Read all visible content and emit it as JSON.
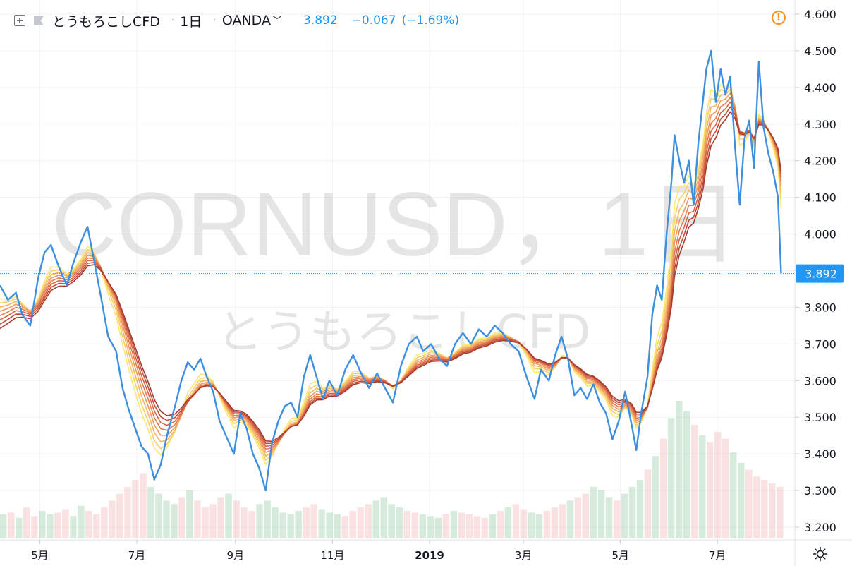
{
  "header": {
    "symbol": "とうもろこしCFD",
    "interval": "1日",
    "separator": "·",
    "exchange": "OANDA",
    "last": "3.892",
    "change": "−0.067",
    "change_pct": "(−1.69%)"
  },
  "watermark": {
    "line1": "CORNUSD，1日",
    "line2": "とうもろこしCFD"
  },
  "price_badge": "3.892",
  "colors": {
    "price_line": "#3d8fe0",
    "badge": "#2196f3",
    "ribbon": [
      "#fbe870",
      "#f8d06a",
      "#f4b463",
      "#ee985a",
      "#e47c50",
      "#d66445",
      "#c14e38",
      "#a93c2e"
    ],
    "volume": "rgba(120,190,140,0.30)",
    "volume_down": "rgba(235,140,140,0.25)",
    "alert": "#f7931a"
  },
  "icons": [
    "add-symbol-icon",
    "flag-icon",
    "chevron-down-icon",
    "alert-icon",
    "settings-gear-icon"
  ],
  "chart_data": {
    "type": "line",
    "title": "とうもろこしCFD · 1日 · OANDA",
    "ylim": [
      3.18,
      4.64
    ],
    "y_ticks": [
      "4.600",
      "4.500",
      "4.400",
      "4.300",
      "4.200",
      "4.100",
      "4.000",
      "3.900",
      "3.800",
      "3.700",
      "3.600",
      "3.500",
      "3.400",
      "3.300",
      "3.200"
    ],
    "x_ticks": [
      "5月",
      "7月",
      "9月",
      "11月",
      "2019",
      "3月",
      "5月",
      "7月"
    ],
    "x_tick_dates": [
      "2018-05-01",
      "2018-07-01",
      "2018-09-01",
      "2018-11-01",
      "2019-01-01",
      "2019-03-01",
      "2019-05-01",
      "2019-07-01"
    ],
    "x_range": [
      "2018-04-06",
      "2019-08-12"
    ],
    "series": [
      {
        "type": "line",
        "points": [
          [
            "2018-04-06",
            3.86
          ],
          [
            "2018-04-11",
            3.82
          ],
          [
            "2018-04-16",
            3.84
          ],
          [
            "2018-04-20",
            3.78
          ],
          [
            "2018-04-25",
            3.75
          ],
          [
            "2018-04-30",
            3.88
          ],
          [
            "2018-05-04",
            3.95
          ],
          [
            "2018-05-08",
            3.97
          ],
          [
            "2018-05-13",
            3.91
          ],
          [
            "2018-05-18",
            3.86
          ],
          [
            "2018-05-22",
            3.92
          ],
          [
            "2018-05-27",
            3.98
          ],
          [
            "2018-05-31",
            4.02
          ],
          [
            "2018-06-04",
            3.93
          ],
          [
            "2018-06-08",
            3.84
          ],
          [
            "2018-06-13",
            3.72
          ],
          [
            "2018-06-18",
            3.68
          ],
          [
            "2018-06-22",
            3.58
          ],
          [
            "2018-06-26",
            3.52
          ],
          [
            "2018-06-30",
            3.47
          ],
          [
            "2018-07-04",
            3.42
          ],
          [
            "2018-07-08",
            3.4
          ],
          [
            "2018-07-12",
            3.33
          ],
          [
            "2018-07-16",
            3.37
          ],
          [
            "2018-07-20",
            3.45
          ],
          [
            "2018-07-25",
            3.53
          ],
          [
            "2018-07-29",
            3.6
          ],
          [
            "2018-08-02",
            3.65
          ],
          [
            "2018-08-06",
            3.63
          ],
          [
            "2018-08-10",
            3.66
          ],
          [
            "2018-08-14",
            3.61
          ],
          [
            "2018-08-18",
            3.57
          ],
          [
            "2018-08-22",
            3.49
          ],
          [
            "2018-08-26",
            3.45
          ],
          [
            "2018-08-31",
            3.4
          ],
          [
            "2018-09-04",
            3.51
          ],
          [
            "2018-09-08",
            3.47
          ],
          [
            "2018-09-12",
            3.4
          ],
          [
            "2018-09-16",
            3.36
          ],
          [
            "2018-09-20",
            3.3
          ],
          [
            "2018-09-24",
            3.43
          ],
          [
            "2018-09-28",
            3.49
          ],
          [
            "2018-10-02",
            3.53
          ],
          [
            "2018-10-06",
            3.54
          ],
          [
            "2018-10-10",
            3.5
          ],
          [
            "2018-10-14",
            3.61
          ],
          [
            "2018-10-18",
            3.67
          ],
          [
            "2018-10-22",
            3.61
          ],
          [
            "2018-10-26",
            3.55
          ],
          [
            "2018-10-30",
            3.6
          ],
          [
            "2018-11-04",
            3.56
          ],
          [
            "2018-11-09",
            3.63
          ],
          [
            "2018-11-14",
            3.67
          ],
          [
            "2018-11-19",
            3.62
          ],
          [
            "2018-11-24",
            3.58
          ],
          [
            "2018-11-29",
            3.62
          ],
          [
            "2018-12-04",
            3.58
          ],
          [
            "2018-12-09",
            3.54
          ],
          [
            "2018-12-14",
            3.64
          ],
          [
            "2018-12-19",
            3.7
          ],
          [
            "2018-12-24",
            3.72
          ],
          [
            "2018-12-28",
            3.68
          ],
          [
            "2019-01-02",
            3.7
          ],
          [
            "2019-01-07",
            3.66
          ],
          [
            "2019-01-12",
            3.64
          ],
          [
            "2019-01-17",
            3.7
          ],
          [
            "2019-01-22",
            3.73
          ],
          [
            "2019-01-27",
            3.7
          ],
          [
            "2019-02-01",
            3.74
          ],
          [
            "2019-02-06",
            3.72
          ],
          [
            "2019-02-11",
            3.75
          ],
          [
            "2019-02-16",
            3.73
          ],
          [
            "2019-02-21",
            3.7
          ],
          [
            "2019-02-26",
            3.68
          ],
          [
            "2019-03-03",
            3.61
          ],
          [
            "2019-03-08",
            3.55
          ],
          [
            "2019-03-12",
            3.63
          ],
          [
            "2019-03-17",
            3.6
          ],
          [
            "2019-03-21",
            3.67
          ],
          [
            "2019-03-25",
            3.72
          ],
          [
            "2019-03-29",
            3.66
          ],
          [
            "2019-04-02",
            3.56
          ],
          [
            "2019-04-06",
            3.58
          ],
          [
            "2019-04-10",
            3.55
          ],
          [
            "2019-04-14",
            3.59
          ],
          [
            "2019-04-18",
            3.54
          ],
          [
            "2019-04-22",
            3.51
          ],
          [
            "2019-04-26",
            3.44
          ],
          [
            "2019-04-30",
            3.49
          ],
          [
            "2019-05-04",
            3.57
          ],
          [
            "2019-05-08",
            3.48
          ],
          [
            "2019-05-11",
            3.41
          ],
          [
            "2019-05-14",
            3.51
          ],
          [
            "2019-05-18",
            3.61
          ],
          [
            "2019-05-21",
            3.78
          ],
          [
            "2019-05-24",
            3.86
          ],
          [
            "2019-05-27",
            3.82
          ],
          [
            "2019-05-30",
            4.0
          ],
          [
            "2019-06-02",
            4.14
          ],
          [
            "2019-06-04",
            4.27
          ],
          [
            "2019-06-07",
            4.2
          ],
          [
            "2019-06-10",
            4.14
          ],
          [
            "2019-06-13",
            4.2
          ],
          [
            "2019-06-16",
            4.08
          ],
          [
            "2019-06-19",
            4.25
          ],
          [
            "2019-06-22",
            4.37
          ],
          [
            "2019-06-24",
            4.45
          ],
          [
            "2019-06-27",
            4.5
          ],
          [
            "2019-06-30",
            4.36
          ],
          [
            "2019-07-03",
            4.45
          ],
          [
            "2019-07-06",
            4.38
          ],
          [
            "2019-07-09",
            4.43
          ],
          [
            "2019-07-12",
            4.24
          ],
          [
            "2019-07-15",
            4.08
          ],
          [
            "2019-07-18",
            4.26
          ],
          [
            "2019-07-21",
            4.31
          ],
          [
            "2019-07-24",
            4.18
          ],
          [
            "2019-07-27",
            4.47
          ],
          [
            "2019-07-30",
            4.29
          ],
          [
            "2019-08-02",
            4.22
          ],
          [
            "2019-08-05",
            4.17
          ],
          [
            "2019-08-08",
            4.1
          ],
          [
            "2019-08-10",
            3.892
          ]
        ]
      }
    ],
    "ribbon": {
      "type": "moving_average_ribbon",
      "count": 8,
      "periods": [
        10,
        12,
        14,
        16,
        18,
        20,
        22,
        24
      ]
    },
    "volume": {
      "type": "histogram",
      "values": [
        14,
        15,
        12,
        18,
        13,
        16,
        14,
        15,
        17,
        13,
        19,
        16,
        14,
        18,
        22,
        26,
        30,
        34,
        38,
        30,
        26,
        22,
        20,
        24,
        28,
        22,
        18,
        20,
        24,
        26,
        22,
        18,
        16,
        20,
        22,
        18,
        15,
        14,
        16,
        18,
        20,
        17,
        15,
        14,
        13,
        16,
        18,
        20,
        22,
        24,
        20,
        18,
        16,
        15,
        14,
        13,
        12,
        14,
        16,
        15,
        14,
        13,
        12,
        14,
        16,
        18,
        20,
        17,
        15,
        14,
        16,
        18,
        20,
        22,
        24,
        26,
        30,
        28,
        24,
        22,
        26,
        30,
        34,
        40,
        48,
        58,
        70,
        80,
        74,
        66,
        60,
        56,
        62,
        58,
        50,
        44,
        40,
        36,
        34,
        32,
        30
      ]
    },
    "last_value_label": "3.892",
    "grid": true,
    "legend": "none"
  }
}
